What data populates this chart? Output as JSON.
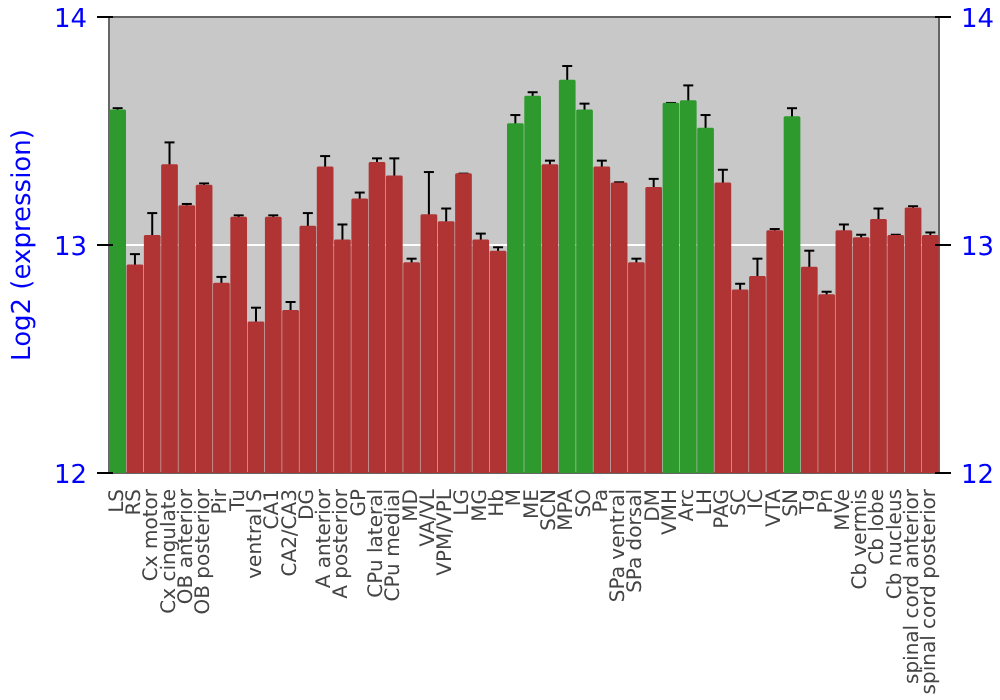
{
  "chart_data": {
    "type": "bar",
    "ylabel": "Log2 (expression)",
    "categories": [
      "LS",
      "RS",
      "Cx motor",
      "Cx cingulate",
      "OB anterior",
      "OB posterior",
      "Pir",
      "Tu",
      "ventral S",
      "CA1",
      "CA2/CA3",
      "DG",
      "A anterior",
      "A posterior",
      "GP",
      "CPu lateral",
      "CPu medial",
      "MD",
      "VA/VL",
      "VPM/VPL",
      "LG",
      "MG",
      "Hb",
      "M",
      "ME",
      "SCN",
      "MPA",
      "SO",
      "Pa",
      "SPa ventral",
      "SPa dorsal",
      "DM",
      "VMH",
      "Arc",
      "LH",
      "PAG",
      "SC",
      "IC",
      "VTA",
      "SN",
      "Tg",
      "Pn",
      "MVe",
      "Cb vermis",
      "Cb lobe",
      "Cb nucleus",
      "spinal cord anterior",
      "spinal cord posterior"
    ],
    "values": [
      13.59,
      12.91,
      13.04,
      13.35,
      13.17,
      13.26,
      12.83,
      13.12,
      12.66,
      13.12,
      12.71,
      13.08,
      13.34,
      13.02,
      13.2,
      13.36,
      13.3,
      12.92,
      13.13,
      13.1,
      13.31,
      13.02,
      12.97,
      13.53,
      13.65,
      13.35,
      13.72,
      13.59,
      13.34,
      13.27,
      12.92,
      13.25,
      13.62,
      13.63,
      13.51,
      13.27,
      12.8,
      12.86,
      13.06,
      13.56,
      12.9,
      12.78,
      13.06,
      13.03,
      13.11,
      13.04,
      13.16,
      13.04
    ],
    "errors": [
      0.01,
      0.05,
      0.1,
      0.1,
      0.01,
      0.01,
      0.03,
      0.01,
      0.065,
      0.01,
      0.04,
      0.06,
      0.05,
      0.07,
      0.03,
      0.02,
      0.08,
      0.02,
      0.19,
      0.06,
      0.003,
      0.03,
      0.02,
      0.04,
      0.02,
      0.02,
      0.065,
      0.03,
      0.03,
      0.005,
      0.02,
      0.04,
      0.003,
      0.07,
      0.06,
      0.06,
      0.03,
      0.08,
      0.01,
      0.04,
      0.075,
      0.015,
      0.03,
      0.015,
      0.05,
      0.005,
      0.01,
      0.015
    ],
    "colors": [
      "#2e9a2e",
      "#b03434",
      "#b03434",
      "#b03434",
      "#b03434",
      "#b03434",
      "#b03434",
      "#b03434",
      "#b03434",
      "#b03434",
      "#b03434",
      "#b03434",
      "#b03434",
      "#b03434",
      "#b03434",
      "#b03434",
      "#b03434",
      "#b03434",
      "#b03434",
      "#b03434",
      "#b03434",
      "#b03434",
      "#b03434",
      "#2e9a2e",
      "#2e9a2e",
      "#b03434",
      "#2e9a2e",
      "#2e9a2e",
      "#b03434",
      "#b03434",
      "#b03434",
      "#b03434",
      "#2e9a2e",
      "#2e9a2e",
      "#2e9a2e",
      "#b03434",
      "#b03434",
      "#b03434",
      "#b03434",
      "#2e9a2e",
      "#b03434",
      "#b03434",
      "#b03434",
      "#b03434",
      "#b03434",
      "#b03434",
      "#b03434",
      "#b03434"
    ],
    "ylim": [
      12,
      14
    ],
    "yticks": [
      12,
      13,
      14
    ],
    "y2lim": [
      12,
      14
    ],
    "y2ticks": [
      12,
      13,
      14
    ],
    "grid": "y"
  }
}
